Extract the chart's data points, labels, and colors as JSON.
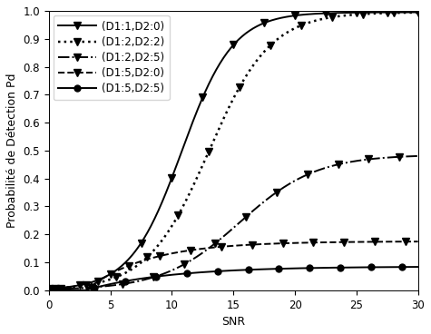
{
  "title": "",
  "xlabel": "SNR",
  "ylabel": "Probabilité de Détection Pd",
  "xlim": [
    0,
    30
  ],
  "ylim": [
    0,
    1
  ],
  "xticks": [
    0,
    5,
    10,
    15,
    20,
    25,
    30
  ],
  "yticks": [
    0,
    0.1,
    0.2,
    0.3,
    0.4,
    0.5,
    0.6,
    0.7,
    0.8,
    0.9,
    1
  ],
  "snr_dense": 300,
  "curve1_label": "(D1:1,D2:0)",
  "curve1_linestyle": "solid",
  "curve1_marker": "v",
  "curve2_label": "(D1:2,D2:2)",
  "curve2_linestyle": "dotted",
  "curve2_marker": "v",
  "curve3_label": "(D1:2,D2:5)",
  "curve3_linestyle": "dashdot",
  "curve3_marker": "v",
  "curve4_label": "(D1:5,D2:0)",
  "curve4_linestyle": "dashed",
  "curve4_marker": "v",
  "curve5_label": "(D1:5,D2:5)",
  "curve5_linestyle": "solid",
  "curve5_marker": "o",
  "color": "#000000",
  "marker_size": 6,
  "linewidth": 1.4,
  "legend_fontsize": 8.5,
  "axis_fontsize": 9,
  "tick_fontsize": 8.5
}
